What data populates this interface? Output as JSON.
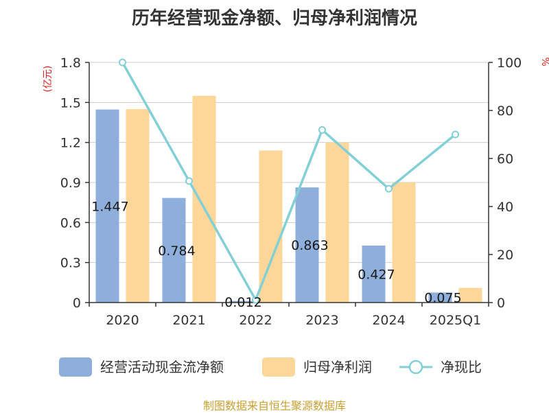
{
  "chart_data": {
    "type": "bar",
    "title": "历年经营现金净额、归母净利润情况",
    "categories": [
      "2020",
      "2021",
      "2022",
      "2023",
      "2024",
      "2025Q1"
    ],
    "series": [
      {
        "name": "经营活动现金流净额",
        "type": "bar",
        "axis": "left",
        "values": [
          1.447,
          0.784,
          0.012,
          0.863,
          0.427,
          0.075
        ],
        "labels": [
          "1.447",
          "0.784",
          "0.012",
          "0.863",
          "0.427",
          "0.075"
        ],
        "color": "#8eaedb"
      },
      {
        "name": "归母净利润",
        "type": "bar",
        "axis": "left",
        "values": [
          1.45,
          1.55,
          1.14,
          1.2,
          0.9,
          0.11
        ],
        "color": "#fdd799"
      },
      {
        "name": "净现比",
        "type": "line",
        "axis": "right",
        "values": [
          100,
          50.6,
          1.1,
          71.9,
          47.4,
          70.0
        ],
        "color": "#82d0d6"
      }
    ],
    "y_left": {
      "unit": "(亿元)",
      "min": 0,
      "max": 1.8,
      "ticks": [
        "0",
        "0.3",
        "0.6",
        "0.9",
        "1.2",
        "1.5",
        "1.8"
      ]
    },
    "y_right": {
      "unit": "%",
      "min": 0,
      "max": 100,
      "ticks": [
        "0",
        "20",
        "40",
        "60",
        "80",
        "100"
      ]
    },
    "grid": true,
    "legend_position": "bottom"
  },
  "source": "制图数据来自恒生聚源数据库"
}
